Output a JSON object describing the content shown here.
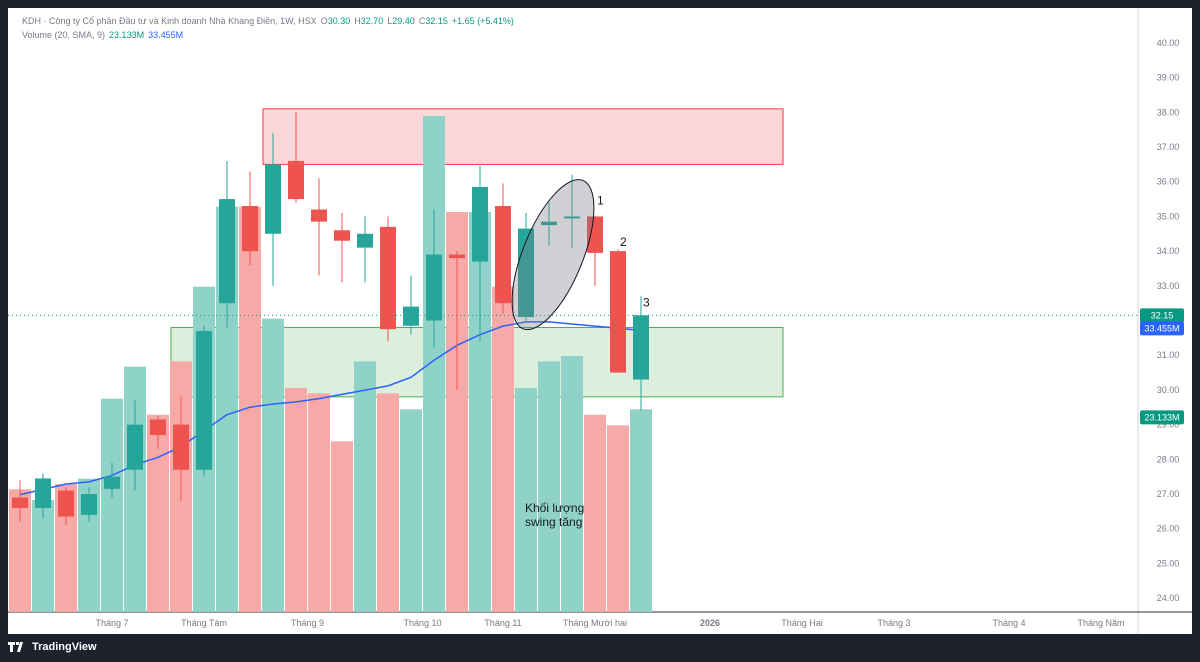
{
  "header": {
    "symbol_line": "KDH · Công ty Cổ phần Đầu tư và Kinh doanh Nhà Khang Điền, 1W, HSX",
    "o_label": "O",
    "o_value": "30.30",
    "h_label": "H",
    "h_value": "32.70",
    "l_label": "L",
    "l_value": "29.40",
    "c_label": "C",
    "c_value": "32.15",
    "change": "+1.65 (+5.41%)",
    "volume_label": "Volume (20, SMA, 9)",
    "volume_value": "23.133M",
    "volume_sma_value": "33.455M"
  },
  "footer": {
    "logo_icon": "tradingview-logo-icon",
    "brand": "TradingView"
  },
  "annotations": {
    "swing_note_line1": "Khối lượng",
    "swing_note_line2": "swing tăng",
    "marker_1": "1",
    "marker_2": "2",
    "marker_3": "3"
  },
  "price_badges": {
    "last_price": "32.15",
    "volume_sma": "33.455M",
    "volume": "23.133M"
  },
  "colors": {
    "up": "#26a69a",
    "down": "#ef5350",
    "up_volume": "#8fd3c8",
    "down_volume": "#f7a9a7",
    "sma": "#2962ff",
    "last_price_badge": "#089981"
  },
  "chart_data": {
    "type": "candlestick",
    "price_axis": {
      "ticks": [
        "24.00",
        "25.00",
        "26.00",
        "27.00",
        "28.00",
        "29.00",
        "30.00",
        "31.00",
        "32.00",
        "33.00",
        "34.00",
        "35.00",
        "36.00",
        "37.00",
        "38.00",
        "39.00",
        "40.00"
      ],
      "range": [
        23.6,
        40.2
      ]
    },
    "time_axis": {
      "labels": [
        "Tháng 7",
        "Tháng Tám",
        "Tháng 9",
        "Tháng 10",
        "Tháng 11",
        "Tháng Mười hai",
        "2026",
        "Tháng Hai",
        "Tháng 3",
        "Tháng 4",
        "Tháng Năm"
      ],
      "label_bar_index": [
        4,
        8,
        12.5,
        17.5,
        21,
        25,
        30,
        34,
        38,
        43,
        47
      ]
    },
    "candles": [
      {
        "o": 26.9,
        "h": 27.4,
        "l": 26.2,
        "c": 26.6
      },
      {
        "o": 26.6,
        "h": 27.6,
        "l": 26.3,
        "c": 27.45
      },
      {
        "o": 27.1,
        "h": 27.2,
        "l": 26.1,
        "c": 26.35
      },
      {
        "o": 26.4,
        "h": 27.2,
        "l": 26.2,
        "c": 27.0
      },
      {
        "o": 27.15,
        "h": 27.9,
        "l": 26.9,
        "c": 27.5
      },
      {
        "o": 27.7,
        "h": 29.7,
        "l": 27.1,
        "c": 29.0
      },
      {
        "o": 29.15,
        "h": 29.25,
        "l": 28.3,
        "c": 28.7
      },
      {
        "o": 29.0,
        "h": 29.8,
        "l": 26.8,
        "c": 27.7
      },
      {
        "o": 27.7,
        "h": 31.85,
        "l": 27.5,
        "c": 31.7
      },
      {
        "o": 32.5,
        "h": 36.6,
        "l": 31.8,
        "c": 35.5
      },
      {
        "o": 35.3,
        "h": 36.3,
        "l": 33.6,
        "c": 34.0
      },
      {
        "o": 34.5,
        "h": 37.4,
        "l": 33.0,
        "c": 36.5
      },
      {
        "o": 36.6,
        "h": 38.0,
        "l": 35.4,
        "c": 35.5
      },
      {
        "o": 35.2,
        "h": 36.1,
        "l": 33.3,
        "c": 34.85
      },
      {
        "o": 34.6,
        "h": 35.1,
        "l": 33.1,
        "c": 34.3
      },
      {
        "o": 34.1,
        "h": 35.0,
        "l": 33.1,
        "c": 34.5
      },
      {
        "o": 34.7,
        "h": 35.0,
        "l": 31.4,
        "c": 31.75
      },
      {
        "o": 31.85,
        "h": 33.3,
        "l": 31.6,
        "c": 32.4
      },
      {
        "o": 32.0,
        "h": 35.2,
        "l": 31.2,
        "c": 33.9
      },
      {
        "o": 33.9,
        "h": 34.0,
        "l": 30.0,
        "c": 33.8
      },
      {
        "o": 33.7,
        "h": 36.45,
        "l": 31.4,
        "c": 35.85
      },
      {
        "o": 35.3,
        "h": 35.95,
        "l": 32.2,
        "c": 32.5
      },
      {
        "o": 32.1,
        "h": 35.1,
        "l": 32.0,
        "c": 34.65
      },
      {
        "o": 34.75,
        "h": 35.4,
        "l": 34.15,
        "c": 34.85
      },
      {
        "o": 35.0,
        "h": 36.2,
        "l": 34.1,
        "c": 35.0
      },
      {
        "o": 35.0,
        "h": 35.0,
        "l": 33.0,
        "c": 33.95
      },
      {
        "o": 34.0,
        "h": 34.05,
        "l": 30.5,
        "c": 30.5
      },
      {
        "o": 30.3,
        "h": 32.7,
        "l": 29.4,
        "c": 32.15
      }
    ],
    "volume": {
      "axis_range": [
        23.0,
        28.4
      ],
      "bars": [
        24.15,
        24.05,
        24.2,
        24.25,
        25.0,
        25.3,
        24.85,
        25.35,
        26.05,
        26.8,
        26.8,
        25.75,
        25.1,
        25.05,
        24.6,
        25.35,
        25.05,
        24.9,
        27.65,
        26.75,
        26.75,
        26.05,
        25.1,
        25.35,
        25.4,
        24.85,
        24.75,
        24.9
      ],
      "sma": [
        24.1,
        24.15,
        24.2,
        24.22,
        24.28,
        24.38,
        24.45,
        24.55,
        24.7,
        24.85,
        24.92,
        24.95,
        24.97,
        25.0,
        25.04,
        25.08,
        25.12,
        25.2,
        25.36,
        25.5,
        25.6,
        25.68,
        25.72,
        25.72,
        25.7,
        25.68,
        25.66,
        25.64
      ]
    },
    "zones": [
      {
        "name": "supply",
        "from_bar": 11,
        "to_bar": 33,
        "price_low": 36.5,
        "price_high": 38.1
      },
      {
        "name": "demand",
        "from_bar": 7,
        "to_bar": 33,
        "price_low": 29.8,
        "price_high": 31.8
      }
    ],
    "last_price": 32.15
  }
}
